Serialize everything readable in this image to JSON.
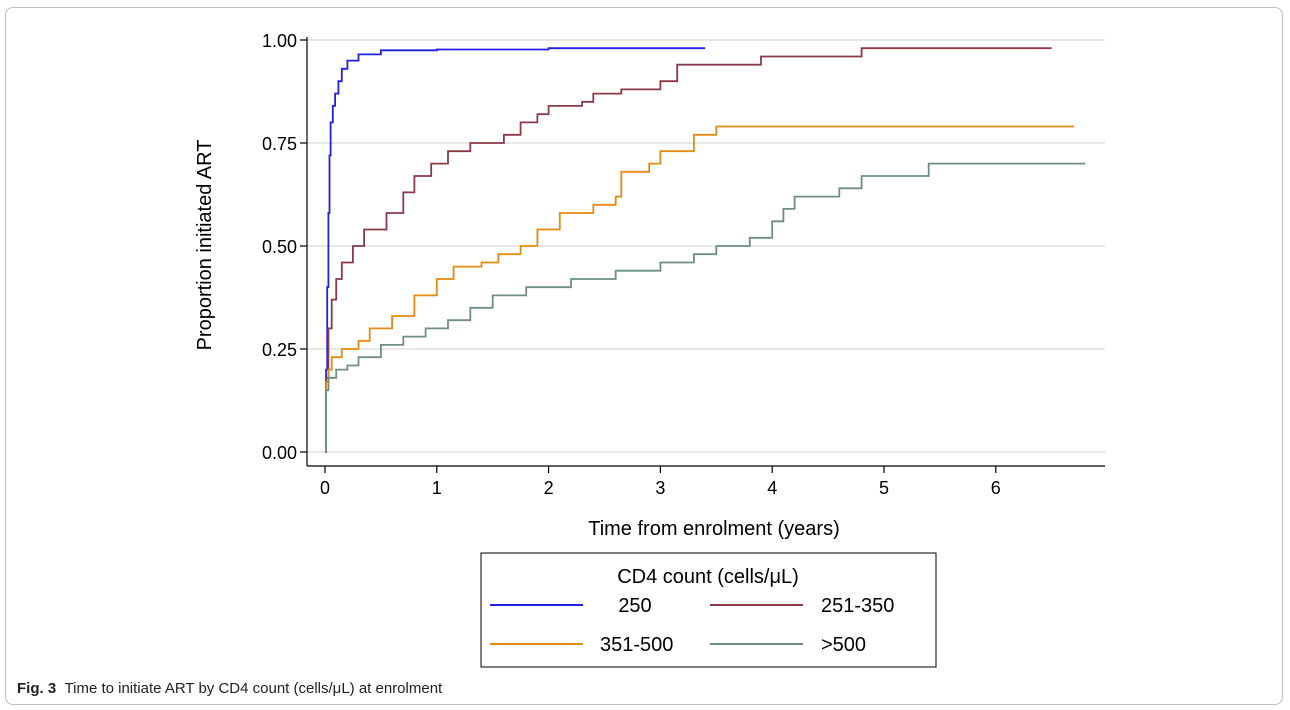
{
  "caption": {
    "label": "Fig. 3",
    "text": "Time to initiate ART by CD4 count (cells/μL) at enrolment"
  },
  "chart_data": {
    "type": "line",
    "step": true,
    "xlabel": "Time from enrolment (years)",
    "ylabel": "Proportion initiated ART",
    "xlim": [
      0,
      7
    ],
    "ylim": [
      0,
      1
    ],
    "xticks": [
      "0",
      "1",
      "2",
      "3",
      "4",
      "5",
      "6"
    ],
    "yticks": [
      "0.00",
      "0.25",
      "0.50",
      "0.75",
      "1.00"
    ],
    "grid": "horizontal",
    "legend": {
      "title": "CD4 count (cells/μL)",
      "position": "bottom"
    },
    "series": [
      {
        "name": "250",
        "color": "#1f1fe6",
        "points": [
          [
            0,
            0
          ],
          [
            0.01,
            0.2
          ],
          [
            0.02,
            0.4
          ],
          [
            0.03,
            0.58
          ],
          [
            0.04,
            0.72
          ],
          [
            0.05,
            0.8
          ],
          [
            0.07,
            0.84
          ],
          [
            0.09,
            0.87
          ],
          [
            0.12,
            0.9
          ],
          [
            0.15,
            0.93
          ],
          [
            0.2,
            0.95
          ],
          [
            0.3,
            0.965
          ],
          [
            0.5,
            0.975
          ],
          [
            1.0,
            0.977
          ],
          [
            2.0,
            0.98
          ],
          [
            3.4,
            0.98
          ]
        ]
      },
      {
        "name": "251-350",
        "color": "#8b3a45",
        "points": [
          [
            0,
            0
          ],
          [
            0.01,
            0.18
          ],
          [
            0.03,
            0.3
          ],
          [
            0.06,
            0.37
          ],
          [
            0.1,
            0.42
          ],
          [
            0.15,
            0.46
          ],
          [
            0.25,
            0.5
          ],
          [
            0.35,
            0.54
          ],
          [
            0.55,
            0.58
          ],
          [
            0.7,
            0.63
          ],
          [
            0.8,
            0.67
          ],
          [
            0.95,
            0.7
          ],
          [
            1.1,
            0.73
          ],
          [
            1.3,
            0.75
          ],
          [
            1.6,
            0.77
          ],
          [
            1.75,
            0.8
          ],
          [
            1.9,
            0.82
          ],
          [
            2.0,
            0.84
          ],
          [
            2.3,
            0.85
          ],
          [
            2.4,
            0.87
          ],
          [
            2.65,
            0.88
          ],
          [
            3.0,
            0.9
          ],
          [
            3.15,
            0.94
          ],
          [
            3.9,
            0.96
          ],
          [
            4.8,
            0.98
          ],
          [
            6.5,
            0.98
          ]
        ]
      },
      {
        "name": "351-500",
        "color": "#e58a12",
        "points": [
          [
            0,
            0
          ],
          [
            0.01,
            0.17
          ],
          [
            0.03,
            0.2
          ],
          [
            0.06,
            0.23
          ],
          [
            0.15,
            0.25
          ],
          [
            0.3,
            0.27
          ],
          [
            0.4,
            0.3
          ],
          [
            0.6,
            0.33
          ],
          [
            0.8,
            0.38
          ],
          [
            1.0,
            0.42
          ],
          [
            1.15,
            0.45
          ],
          [
            1.4,
            0.46
          ],
          [
            1.55,
            0.48
          ],
          [
            1.75,
            0.5
          ],
          [
            1.9,
            0.54
          ],
          [
            2.1,
            0.58
          ],
          [
            2.4,
            0.6
          ],
          [
            2.6,
            0.62
          ],
          [
            2.65,
            0.68
          ],
          [
            2.9,
            0.7
          ],
          [
            3.0,
            0.73
          ],
          [
            3.3,
            0.77
          ],
          [
            3.5,
            0.79
          ],
          [
            6.7,
            0.79
          ]
        ]
      },
      {
        "name": ">500",
        "color": "#6e8e84",
        "points": [
          [
            0,
            0
          ],
          [
            0.01,
            0.15
          ],
          [
            0.03,
            0.18
          ],
          [
            0.1,
            0.2
          ],
          [
            0.2,
            0.21
          ],
          [
            0.3,
            0.23
          ],
          [
            0.5,
            0.26
          ],
          [
            0.7,
            0.28
          ],
          [
            0.9,
            0.3
          ],
          [
            1.1,
            0.32
          ],
          [
            1.3,
            0.35
          ],
          [
            1.5,
            0.38
          ],
          [
            1.8,
            0.4
          ],
          [
            2.2,
            0.42
          ],
          [
            2.6,
            0.44
          ],
          [
            3.0,
            0.46
          ],
          [
            3.3,
            0.48
          ],
          [
            3.5,
            0.5
          ],
          [
            3.8,
            0.52
          ],
          [
            4.0,
            0.56
          ],
          [
            4.1,
            0.59
          ],
          [
            4.2,
            0.62
          ],
          [
            4.6,
            0.64
          ],
          [
            4.8,
            0.67
          ],
          [
            5.4,
            0.7
          ],
          [
            6.8,
            0.7
          ]
        ]
      }
    ]
  }
}
